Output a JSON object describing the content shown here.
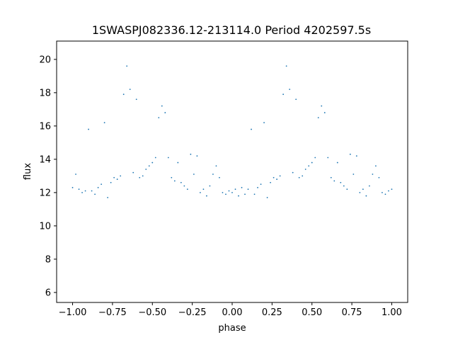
{
  "chart_data": {
    "type": "scatter",
    "title": "1SWASPJ082336.12-213114.0 Period 4202597.5s",
    "xlabel": "phase",
    "ylabel": "flux",
    "xlim": [
      -1.1,
      1.1
    ],
    "ylim": [
      5.4,
      21.1
    ],
    "grid": false,
    "xticks": [
      -1.0,
      -0.75,
      -0.5,
      -0.25,
      0.0,
      0.25,
      0.5,
      0.75,
      1.0
    ],
    "xtick_labels": [
      "−1.00",
      "−0.75",
      "−0.50",
      "−0.25",
      "0.00",
      "0.25",
      "0.50",
      "0.75",
      "1.00"
    ],
    "yticks": [
      6,
      8,
      10,
      12,
      14,
      16,
      18,
      20
    ],
    "ytick_labels": [
      "6",
      "8",
      "10",
      "12",
      "14",
      "16",
      "18",
      "20"
    ],
    "point_color": "#1f77b4",
    "series": [
      {
        "x": [
          -1.0,
          -0.98,
          -0.96,
          -0.94,
          -0.92,
          -0.9,
          -0.88,
          -0.86,
          -0.84,
          -0.82,
          -0.8,
          -0.78,
          -0.76,
          -0.74,
          -0.72,
          -0.7,
          -0.68,
          -0.66,
          -0.64,
          -0.62,
          -0.6,
          -0.58,
          -0.56,
          -0.54,
          -0.52,
          -0.5,
          -0.48,
          -0.46,
          -0.44,
          -0.42,
          -0.4,
          -0.38,
          -0.36,
          -0.34,
          -0.32,
          -0.3,
          -0.28,
          -0.26,
          -0.24,
          -0.22,
          -0.2,
          -0.18,
          -0.16,
          -0.14,
          -0.12,
          -0.1,
          -0.08,
          -0.06,
          -0.04,
          -0.02,
          0.0,
          0.02,
          0.04,
          0.06,
          0.08,
          0.1,
          0.12,
          0.14,
          0.16,
          0.18,
          0.2,
          0.22,
          0.24,
          0.26,
          0.28,
          0.3,
          0.32,
          0.34,
          0.36,
          0.38,
          0.4,
          0.42,
          0.44,
          0.46,
          0.48,
          0.5,
          0.52,
          0.54,
          0.56,
          0.58,
          0.6,
          0.62,
          0.64,
          0.66,
          0.68,
          0.7,
          0.72,
          0.74,
          0.76,
          0.78,
          0.8,
          0.82,
          0.84,
          0.86,
          0.88,
          0.9,
          0.92,
          0.94,
          0.96,
          0.98,
          1.0
        ],
        "y": [
          12.3,
          13.1,
          12.2,
          12.0,
          12.1,
          15.8,
          12.1,
          11.9,
          12.3,
          12.5,
          16.2,
          11.7,
          12.6,
          12.9,
          12.8,
          13.0,
          17.9,
          19.6,
          18.2,
          13.2,
          17.6,
          12.9,
          13.0,
          13.4,
          13.6,
          13.8,
          14.1,
          16.5,
          17.2,
          16.8,
          14.1,
          12.9,
          12.7,
          13.8,
          12.6,
          12.4,
          12.2,
          14.3,
          13.1,
          14.2,
          12.0,
          12.2,
          11.8,
          12.4,
          13.1,
          13.6,
          12.9,
          12.0,
          11.9,
          12.1,
          12.0,
          12.2,
          11.8,
          12.3,
          11.9,
          12.2,
          15.8,
          11.9,
          12.3,
          12.5,
          16.2,
          11.7,
          12.6,
          12.9,
          12.8,
          13.0,
          17.9,
          19.6,
          18.2,
          13.2,
          17.6,
          12.9,
          13.0,
          13.4,
          13.6,
          13.8,
          14.1,
          16.5,
          17.2,
          16.8,
          14.1,
          12.9,
          12.7,
          13.8,
          12.6,
          12.4,
          12.2,
          14.3,
          13.1,
          14.2,
          12.0,
          12.2,
          11.8,
          12.4,
          13.1,
          13.6,
          12.9,
          12.0,
          11.9,
          12.1,
          12.2
        ]
      }
    ]
  }
}
